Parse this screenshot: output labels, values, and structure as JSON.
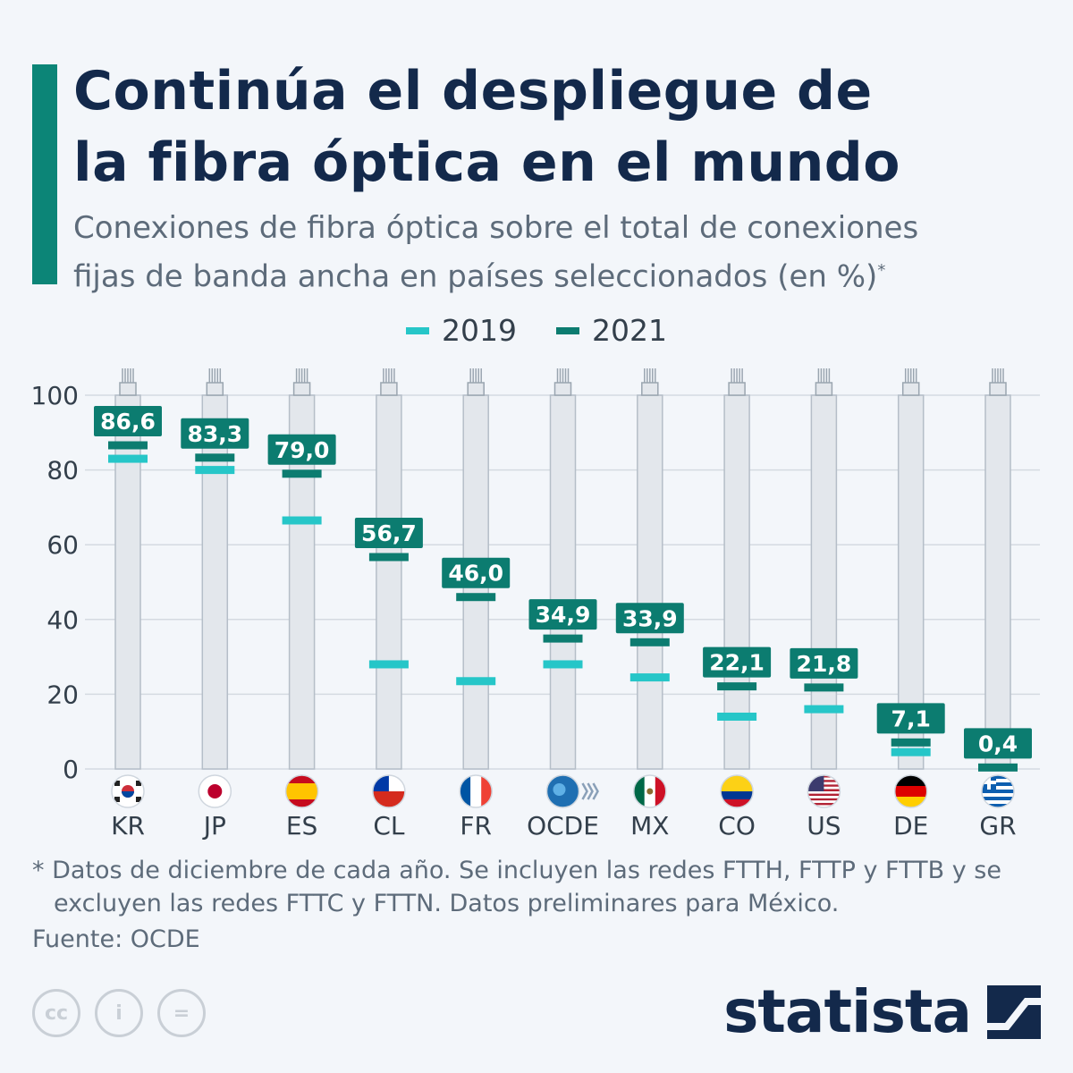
{
  "title": [
    "Continúa el despliegue de",
    "la fibra óptica en el mundo"
  ],
  "subtitle": [
    "Conexiones de fibra óptica sobre el total de conexiones",
    "fijas de banda ancha en países seleccionados (en %)"
  ],
  "subtitle_mark": "*",
  "legend": [
    {
      "label": "2019",
      "color": "#26c6c8"
    },
    {
      "label": "2021",
      "color": "#0c7c70"
    }
  ],
  "chart_data": {
    "type": "bar",
    "categories": [
      "KR",
      "JP",
      "ES",
      "CL",
      "FR",
      "OCDE",
      "MX",
      "CO",
      "US",
      "DE",
      "GR"
    ],
    "series": [
      {
        "name": "2019",
        "values": [
          83,
          80,
          66.5,
          28,
          23.5,
          28,
          24.5,
          14,
          16,
          4.5,
          0
        ]
      },
      {
        "name": "2021",
        "values": [
          86.6,
          83.3,
          79.0,
          56.7,
          46.0,
          34.9,
          33.9,
          22.1,
          21.8,
          7.1,
          0.4
        ]
      }
    ],
    "value_labels": [
      "86,6",
      "83,3",
      "79,0",
      "56,7",
      "46,0",
      "34,9",
      "33,9",
      "22,1",
      "21,8",
      "7,1",
      "0,4"
    ],
    "ylim": [
      0,
      100
    ],
    "yticks": [
      "0",
      "20",
      "40",
      "60",
      "80",
      "100"
    ],
    "grid": true,
    "legend_position": "top-center",
    "flags": [
      "south-korea-flag",
      "japan-flag",
      "spain-flag",
      "chile-flag",
      "france-flag",
      "oecd-logo",
      "mexico-flag",
      "colombia-flag",
      "usa-flag",
      "germany-flag",
      "greece-flag"
    ]
  },
  "footnote": [
    "* Datos de diciembre de cada año. Se incluyen las redes FTTH, FTTP y FTTB y se",
    "excluyen las redes FTTC y FTTN. Datos preliminares para México."
  ],
  "source": "Fuente: OCDE",
  "license_icons": [
    "cc-icon",
    "attribution-icon",
    "no-derivatives-icon"
  ],
  "license_glyphs": [
    "cc",
    "i",
    "="
  ],
  "brand": "statista",
  "colors": {
    "accent": "#0c8577",
    "title": "#13294b",
    "text": "#5d6b7a",
    "tube": "#e3e7ec",
    "label_box": "#0c7c70"
  }
}
